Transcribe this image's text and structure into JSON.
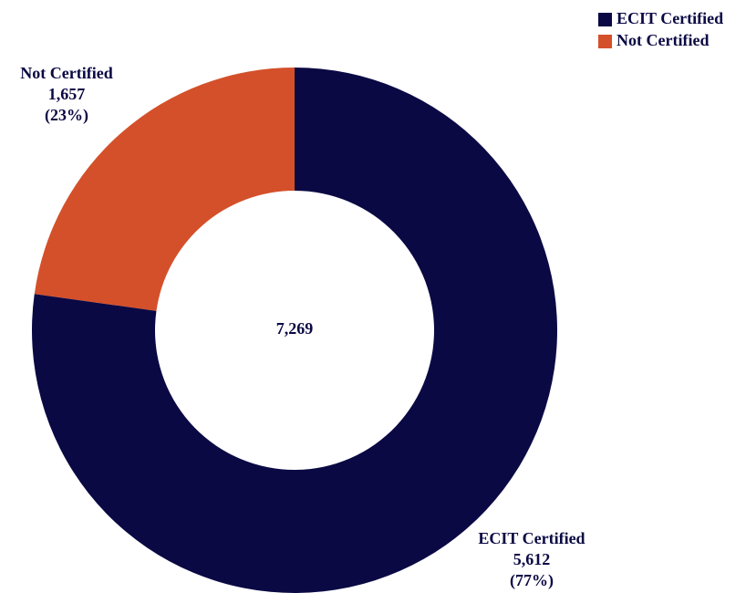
{
  "chart_data": {
    "type": "pie",
    "donut": true,
    "categories": [
      "ECIT Certified",
      "Not Certified"
    ],
    "values": [
      5612,
      1657
    ],
    "value_labels": [
      "5,612",
      "1,657"
    ],
    "percent_labels": [
      "(77%)",
      "(23%)"
    ],
    "colors": [
      "#0a0944",
      "#d4502a"
    ],
    "center_label": "7,269",
    "legend": "top-right"
  }
}
